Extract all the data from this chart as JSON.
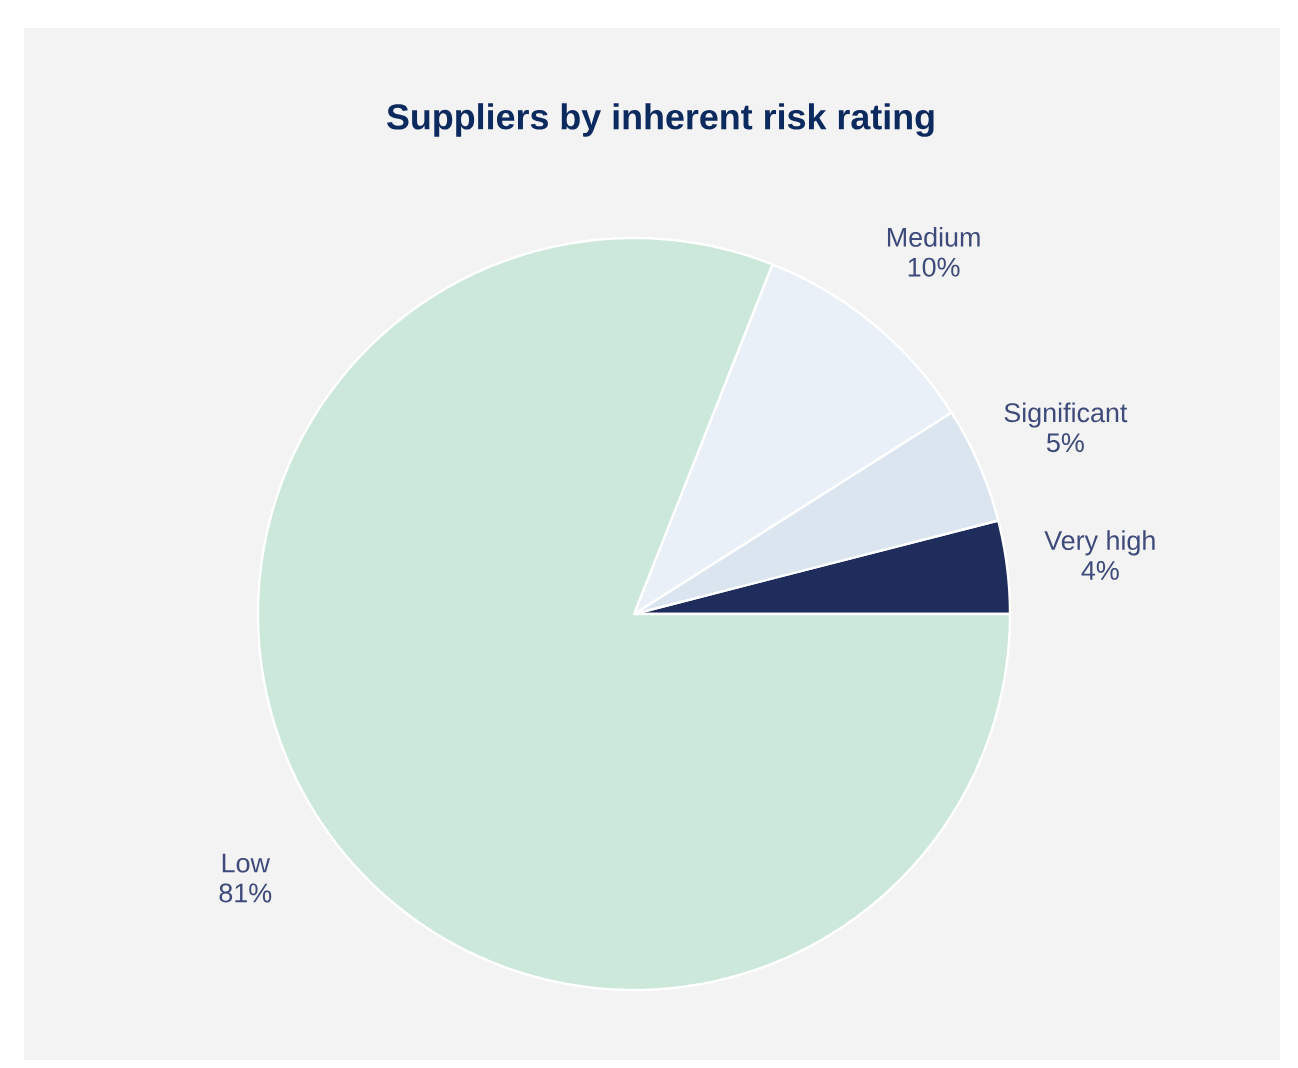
{
  "chart_data": {
    "type": "pie",
    "title": "Suppliers by inherent risk rating",
    "categories": [
      "Very high",
      "Significant",
      "Medium",
      "Low"
    ],
    "values": [
      4,
      5,
      10,
      81
    ],
    "value_labels": [
      "4%",
      "5%",
      "10%",
      "81%"
    ],
    "colors": [
      "#1f2d5c",
      "#dbe5f0",
      "#e9f0f8",
      "#cce8da"
    ]
  }
}
